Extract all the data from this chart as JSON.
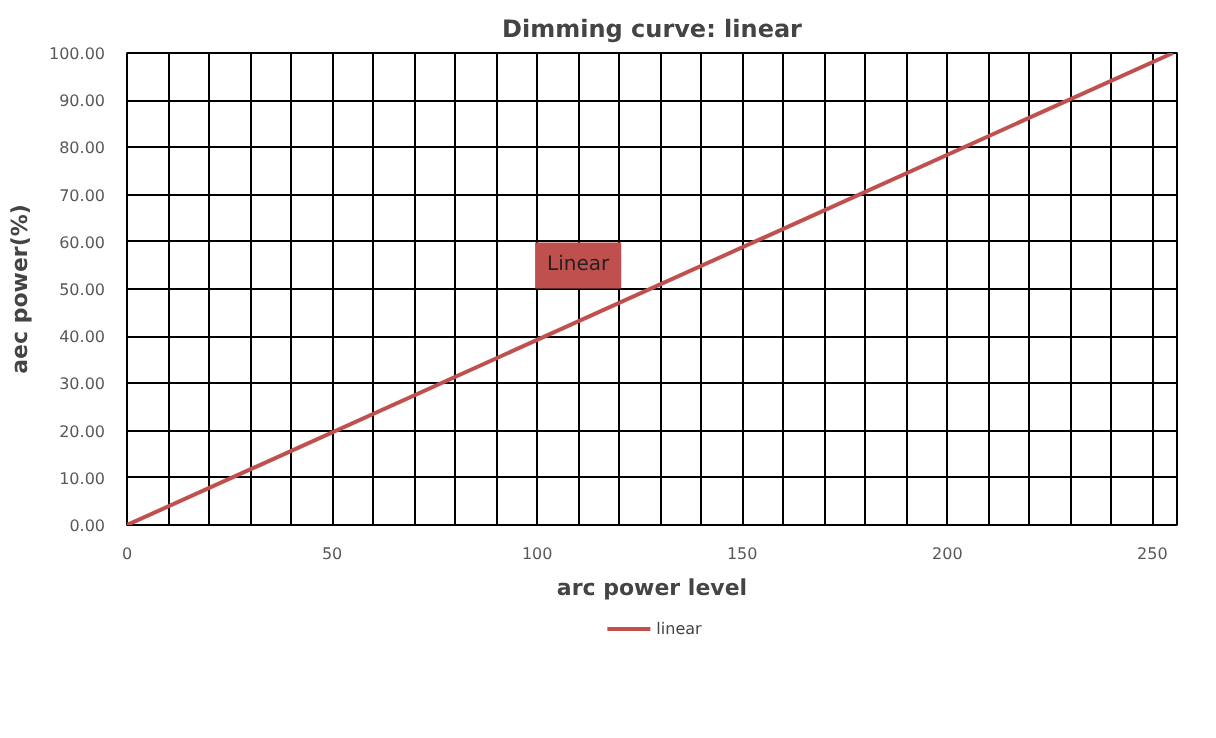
{
  "chart_data": {
    "type": "line",
    "title": "Dimming curve: linear",
    "xlabel": "arc power level",
    "ylabel": "aec power(%)",
    "x": [
      0,
      255
    ],
    "series": [
      {
        "name": "linear",
        "color": "#c0504d",
        "values": [
          0,
          100
        ]
      }
    ],
    "xlim": [
      0,
      256
    ],
    "xticks": [
      0,
      {
        "value": 10,
        "label": null
      },
      {
        "value": 20,
        "label": null
      },
      {
        "value": 30,
        "label": null
      },
      {
        "value": 40,
        "label": null
      },
      50,
      {
        "value": 60,
        "label": null
      },
      {
        "value": 70,
        "label": null
      },
      {
        "value": 80,
        "label": null
      },
      {
        "value": 90,
        "label": null
      },
      100,
      {
        "value": 110,
        "label": null
      },
      {
        "value": 120,
        "label": null
      },
      {
        "value": 130,
        "label": null
      },
      {
        "value": 140,
        "label": null
      },
      150,
      {
        "value": 160,
        "label": null
      },
      {
        "value": 170,
        "label": null
      },
      {
        "value": 180,
        "label": null
      },
      {
        "value": 190,
        "label": null
      },
      200,
      {
        "value": 210,
        "label": null
      },
      {
        "value": 220,
        "label": null
      },
      {
        "value": 230,
        "label": null
      },
      {
        "value": 240,
        "label": null
      },
      250
    ],
    "ylim": [
      0,
      100
    ],
    "yticks": [
      {
        "value": 0,
        "label": "0.00"
      },
      {
        "value": 10,
        "label": "10.00"
      },
      {
        "value": 20,
        "label": "20.00"
      },
      {
        "value": 30,
        "label": "30.00"
      },
      {
        "value": 40,
        "label": "40.00"
      },
      {
        "value": 50,
        "label": "50.00"
      },
      {
        "value": 60,
        "label": "60.00"
      },
      {
        "value": 70,
        "label": "70.00"
      },
      {
        "value": 80,
        "label": "80.00"
      },
      {
        "value": 90,
        "label": "90.00"
      },
      {
        "value": 100,
        "label": "100.00"
      }
    ],
    "annotations": [
      {
        "text": "Linear",
        "x": 110,
        "y": 55
      }
    ],
    "grid": true,
    "legend": "bottom",
    "marker": "none",
    "line_style": "solid"
  }
}
